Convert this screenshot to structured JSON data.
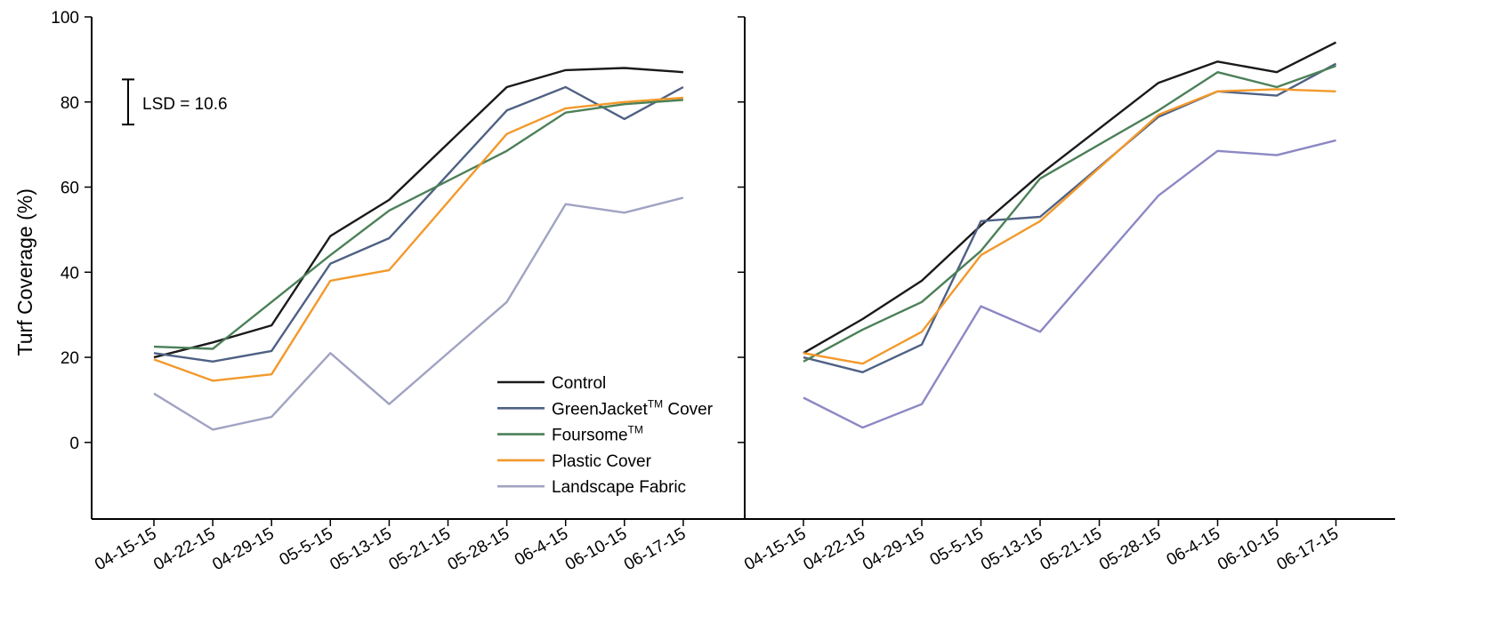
{
  "chart_data": [
    {
      "type": "line",
      "panel": "left",
      "ylabel": "Turf Coverage (%)",
      "ylim": [
        -18,
        100
      ],
      "yticks": [
        0,
        20,
        40,
        60,
        80,
        100
      ],
      "categories": [
        "04-15-15",
        "04-22-15",
        "04-29-15",
        "05-5-15",
        "05-13-15",
        "05-21-15",
        "05-28-15",
        "06-4-15",
        "06-10-15",
        "06-17-15"
      ],
      "annotation": "LSD = 10.6",
      "lsd_value": 10.6,
      "lsd_center": 80,
      "series": [
        {
          "name": "Control",
          "color": "#1a1a1a",
          "values": [
            20,
            23.5,
            27.5,
            48.5,
            57,
            null,
            83.5,
            87.5,
            88,
            87
          ]
        },
        {
          "name": "GreenJacket Cover",
          "color": "#4f6184",
          "values": [
            21,
            19,
            21.5,
            42,
            48,
            null,
            78,
            83.5,
            76,
            83.5
          ]
        },
        {
          "name": "Foursome",
          "color": "#4c8058",
          "values": [
            22.5,
            22,
            33,
            44,
            54.5,
            null,
            68.5,
            77.5,
            79.5,
            80.5
          ]
        },
        {
          "name": "Plastic Cover",
          "color": "#f2992b",
          "values": [
            19.5,
            14.5,
            16,
            38,
            40.5,
            null,
            72.5,
            78.5,
            80,
            81
          ]
        },
        {
          "name": "Landscape Fabric",
          "color": "#a0a3c2",
          "values": [
            11.5,
            3,
            6,
            21,
            9,
            null,
            33,
            56,
            54,
            57.5
          ]
        }
      ]
    },
    {
      "type": "line",
      "panel": "right",
      "categories": [
        "04-15-15",
        "04-22-15",
        "04-29-15",
        "05-5-15",
        "05-13-15",
        "05-21-15",
        "05-28-15",
        "06-4-15",
        "06-10-15",
        "06-17-15"
      ],
      "series": [
        {
          "name": "Control",
          "color": "#1a1a1a",
          "values": [
            21,
            29,
            38,
            51,
            63,
            null,
            84.5,
            89.5,
            87,
            94
          ]
        },
        {
          "name": "GreenJacket Cover",
          "color": "#4f6184",
          "values": [
            20,
            16.5,
            23,
            52,
            53,
            null,
            76.5,
            82.5,
            81.5,
            89
          ]
        },
        {
          "name": "Foursome",
          "color": "#4c8058",
          "values": [
            19,
            26.5,
            33,
            45,
            62,
            null,
            78,
            87,
            83.5,
            88.5
          ]
        },
        {
          "name": "Plastic Cover",
          "color": "#f2992b",
          "values": [
            21,
            18.5,
            26,
            44,
            52,
            null,
            77,
            82.5,
            83,
            82.5
          ]
        },
        {
          "name": "Landscape Fabric",
          "color": "#8c88c4",
          "values": [
            10.5,
            3.5,
            9,
            32,
            26,
            null,
            58,
            68.5,
            67.5,
            71
          ]
        }
      ]
    }
  ],
  "legend": {
    "placement": "lower-right of left panel",
    "items": [
      {
        "label": "Control",
        "sup": "",
        "color": "#1a1a1a"
      },
      {
        "label": "GreenJacket",
        "sup": "TM",
        "suffix": " Cover",
        "color": "#4f6184"
      },
      {
        "label": "Foursome",
        "sup": "TM",
        "suffix": "",
        "color": "#4c8058"
      },
      {
        "label": "Plastic Cover",
        "sup": "",
        "color": "#f2992b"
      },
      {
        "label": "Landscape Fabric",
        "sup": "",
        "color": "#a0a3c2"
      }
    ]
  }
}
